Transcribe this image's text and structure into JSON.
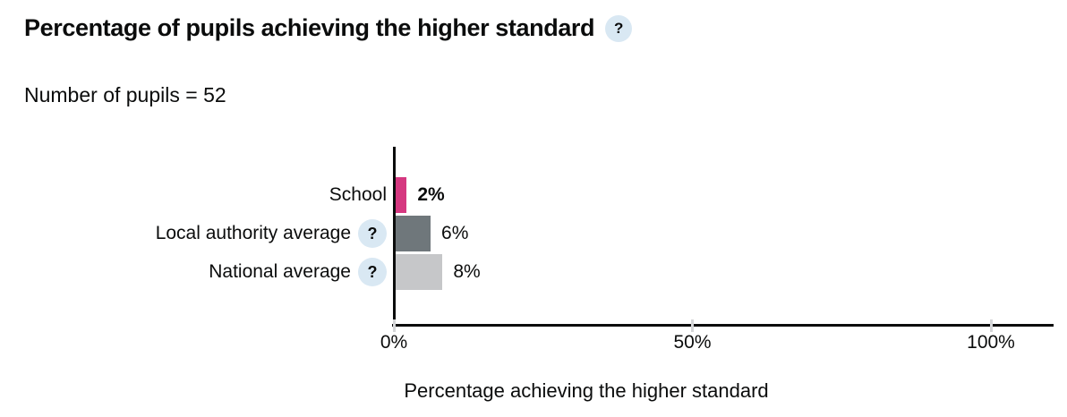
{
  "header": {
    "title": "Percentage of pupils achieving the higher standard",
    "help_icon_glyph": "?"
  },
  "subtitle": "Number of pupils = 52",
  "colors": {
    "text": "#0b0c0c",
    "axis": "#0b0c0c",
    "tick": "#d4d5d7",
    "help_circle_bg": "#d9e8f3",
    "school_bar": "#d53880",
    "local_authority_bar": "#6f777b",
    "national_bar": "#c6c7c9"
  },
  "chart_data": {
    "type": "bar",
    "orientation": "horizontal",
    "title": "Percentage of pupils achieving the higher standard",
    "subtitle": "Number of pupils = 52",
    "categories": [
      "School",
      "Local authority average",
      "National average"
    ],
    "values": [
      2,
      6,
      8
    ],
    "value_labels": [
      "2%",
      "6%",
      "8%"
    ],
    "bar_colors": [
      "#d53880",
      "#6f777b",
      "#c6c7c9"
    ],
    "rows_with_help_icon": [
      "Local authority average",
      "National average"
    ],
    "xlabel": "Percentage achieving the higher standard",
    "xlim": [
      0,
      100
    ],
    "x_ticks": [
      {
        "value": 0,
        "label": "0%"
      },
      {
        "value": 50,
        "label": "50%"
      },
      {
        "value": 100,
        "label": "100%"
      }
    ],
    "grid": false,
    "legend": false
  }
}
